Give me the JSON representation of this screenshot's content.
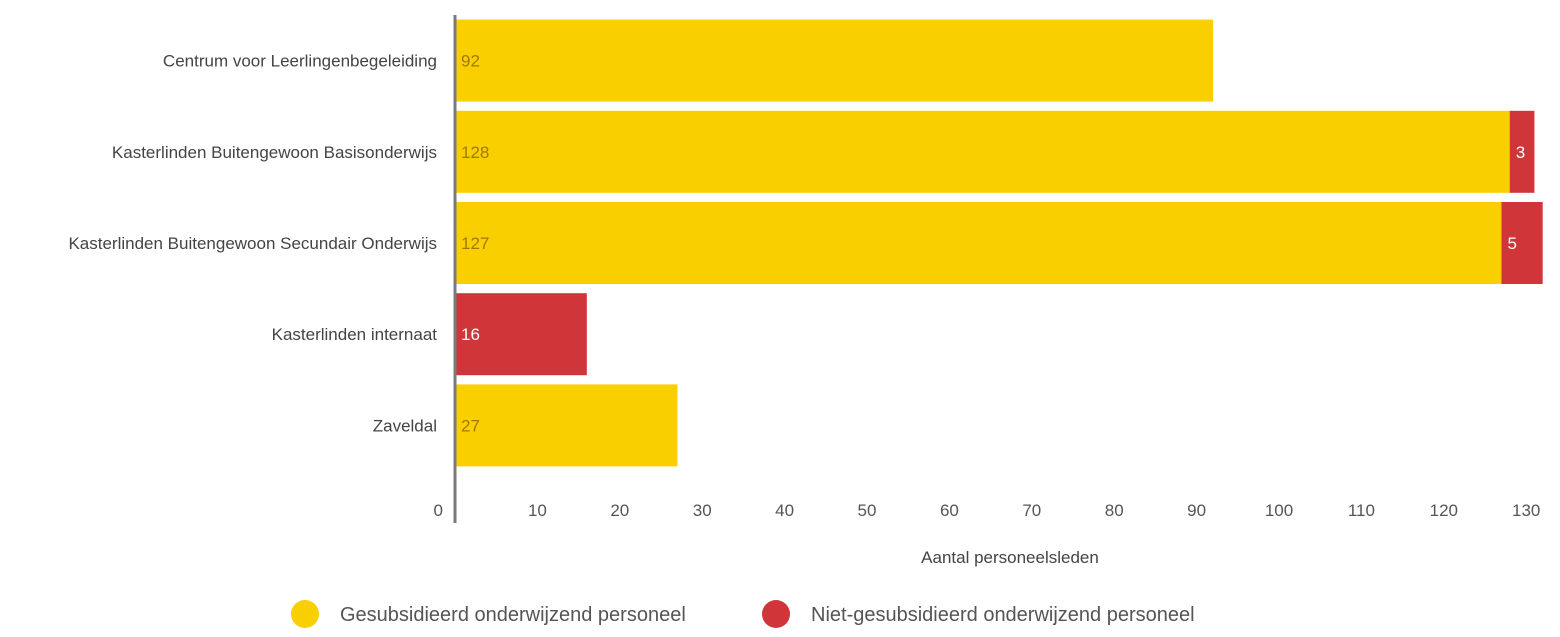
{
  "chart_data": {
    "type": "bar",
    "orientation": "horizontal",
    "stacked": true,
    "categories": [
      "Centrum voor Leerlingenbegeleiding",
      "Kasterlinden Buitengewoon Basisonderwijs",
      "Kasterlinden Buitengewoon Secundair Onderwijs",
      "Kasterlinden internaat",
      "Zaveldal"
    ],
    "series": [
      {
        "name": "Gesubsidieerd onderwijzend personeel",
        "color": "#f9cf00",
        "values": [
          92,
          128,
          127,
          0,
          27
        ]
      },
      {
        "name": "Niet-gesubsidieerd onderwijzend personeel",
        "color": "#d0353a",
        "values": [
          0,
          3,
          5,
          16,
          0
        ]
      }
    ],
    "data_labels": [
      [
        "92",
        "128",
        "127",
        "",
        "27"
      ],
      [
        "",
        "3",
        "5",
        "16",
        ""
      ]
    ],
    "xlabel": "Aantal personeelsleden",
    "ylabel": "",
    "xlim": [
      0,
      132
    ],
    "xticks": [
      0,
      10,
      20,
      30,
      40,
      50,
      60,
      70,
      80,
      90,
      100,
      110,
      120,
      130
    ],
    "grid": false,
    "legend_position": "bottom"
  }
}
